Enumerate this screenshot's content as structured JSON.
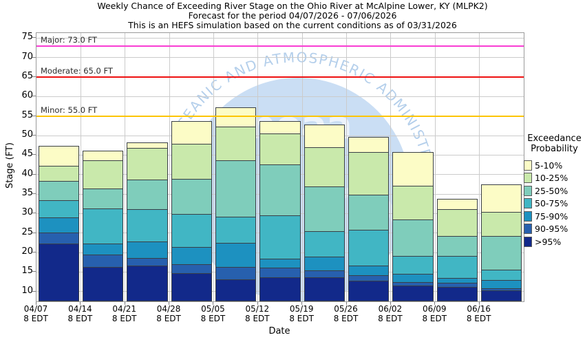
{
  "title": {
    "line1": "Weekly Chance of Exceeding River Stage on the Ohio River at McAlpine Lower, KY (MLPK2)",
    "line2": "Forecast for the period 04/07/2026 - 07/06/2026",
    "line3": "This is an HEFS simulation based on the current conditions as of 03/31/2026"
  },
  "watermark": {
    "arc_text": "CEANIC AND ATMOSPHERIC ADMINISTR",
    "center_text": "noaa"
  },
  "legend": {
    "title_line1": "Exceedance",
    "title_line2": "Probability"
  },
  "chart_data": {
    "type": "bar",
    "stacked": true,
    "title": "Weekly Chance of Exceeding River Stage on the Ohio River at McAlpine Lower, KY (MLPK2)",
    "subtitle": "Forecast for the period 04/07/2026 - 07/06/2026",
    "note": "This is an HEFS simulation based on the current conditions as of 03/31/2026",
    "xlabel": "Date",
    "ylabel": "Stage (FT)",
    "ylim": [
      7.5,
      76.3
    ],
    "yticks": [
      10,
      15,
      20,
      25,
      30,
      35,
      40,
      45,
      50,
      55,
      60,
      65,
      70,
      75
    ],
    "grid": true,
    "x_tick_sub": "8 EDT",
    "categories": [
      "04/07",
      "04/14",
      "04/21",
      "04/28",
      "05/05",
      "05/12",
      "05/19",
      "05/26",
      "06/02",
      "06/09",
      "06/16"
    ],
    "bands_top_to_bottom": [
      {
        "label": "5-10%",
        "color": "#fcfcc6"
      },
      {
        "label": "10-25%",
        "color": "#c9e9ab"
      },
      {
        "label": "25-50%",
        "color": "#7fcdbb"
      },
      {
        "label": "50-75%",
        "color": "#41b6c4"
      },
      {
        "label": "75-90%",
        "color": "#1d91c0"
      },
      {
        "label": "90-95%",
        "color": "#2760ae"
      },
      {
        "label": ">95%",
        "color": "#12298a"
      }
    ],
    "thresholds": [
      {
        "name": "Major",
        "label": "Major: 73.0 FT",
        "value_ft": 73.0,
        "color": "#f93dd3"
      },
      {
        "name": "Moderate",
        "label": "Moderate: 65.0 FT",
        "value_ft": 65.0,
        "color": "#ee1010"
      },
      {
        "name": "Minor",
        "label": "Minor: 55.0 FT",
        "value_ft": 55.0,
        "color": "#fdc500"
      }
    ],
    "base_ft": 7.5,
    "bars": [
      {
        "date": "04/07",
        "boundaries_ft_top_to_bottom": [
          47.4,
          42.1,
          38.2,
          33.2,
          28.8,
          24.9,
          22.2
        ]
      },
      {
        "date": "04/14",
        "boundaries_ft_top_to_bottom": [
          46.1,
          43.5,
          36.3,
          31.2,
          22.2,
          19.4,
          16.2
        ]
      },
      {
        "date": "04/21",
        "boundaries_ft_top_to_bottom": [
          48.2,
          46.7,
          38.5,
          30.9,
          22.6,
          18.5,
          16.5
        ]
      },
      {
        "date": "04/28",
        "boundaries_ft_top_to_bottom": [
          53.7,
          47.8,
          38.8,
          29.7,
          21.2,
          16.8,
          14.6
        ]
      },
      {
        "date": "05/05",
        "boundaries_ft_top_to_bottom": [
          57.2,
          52.1,
          43.5,
          29.1,
          22.3,
          16.2,
          12.9
        ]
      },
      {
        "date": "05/12",
        "boundaries_ft_top_to_bottom": [
          53.8,
          50.4,
          42.4,
          29.4,
          18.2,
          15.9,
          13.5
        ]
      },
      {
        "date": "05/19",
        "boundaries_ft_top_to_bottom": [
          52.8,
          46.8,
          36.8,
          25.3,
          18.8,
          15.3,
          13.5
        ]
      },
      {
        "date": "05/26",
        "boundaries_ft_top_to_bottom": [
          49.7,
          45.6,
          34.7,
          25.6,
          16.5,
          14.1,
          12.6
        ]
      },
      {
        "date": "06/02",
        "boundaries_ft_top_to_bottom": [
          45.8,
          37.0,
          28.4,
          19.0,
          14.4,
          12.2,
          11.4
        ]
      },
      {
        "date": "06/09",
        "boundaries_ft_top_to_bottom": [
          33.7,
          30.9,
          24.1,
          18.9,
          13.4,
          12.0,
          11.0
        ]
      },
      {
        "date": "06/16",
        "boundaries_ft_top_to_bottom": [
          37.5,
          30.3,
          24.1,
          15.5,
          12.8,
          10.6,
          10.1
        ]
      }
    ]
  }
}
